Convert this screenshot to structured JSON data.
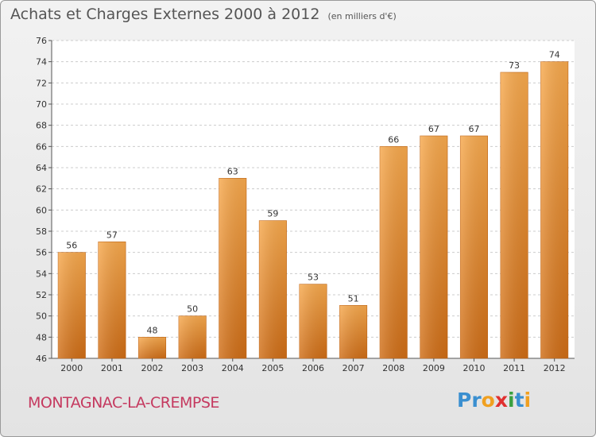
{
  "title": "Achats et Charges Externes 2000 à 2012",
  "subtitle": "(en milliers d'€)",
  "commune": "MONTAGNAC-LA-CREMPSE",
  "logo": {
    "text": "Proxiti",
    "letters": [
      {
        "ch": "P",
        "color": "#3a8fd0"
      },
      {
        "ch": "r",
        "color": "#3a8fd0"
      },
      {
        "ch": "o",
        "color": "#f0a020"
      },
      {
        "ch": "x",
        "color": "#e03030"
      },
      {
        "ch": "i",
        "color": "#3aa040"
      },
      {
        "ch": "t",
        "color": "#3a8fd0"
      },
      {
        "ch": "i",
        "color": "#f0a020"
      }
    ]
  },
  "colors": {
    "bar_light": "#f7a94d",
    "bar_dark": "#cf6d16",
    "grid": "#cccccc",
    "commune": "#c5395f"
  },
  "chart_data": {
    "type": "bar",
    "title": "Achats et Charges Externes 2000 à 2012",
    "subtitle": "(en milliers d'€)",
    "categories": [
      "2000",
      "2001",
      "2002",
      "2003",
      "2004",
      "2005",
      "2006",
      "2007",
      "2008",
      "2009",
      "2010",
      "2011",
      "2012"
    ],
    "values": [
      56,
      57,
      48,
      50,
      63,
      59,
      53,
      51,
      66,
      67,
      67,
      73,
      74
    ],
    "ylim": [
      46,
      76
    ],
    "yticks": [
      46,
      48,
      50,
      52,
      54,
      56,
      58,
      60,
      62,
      64,
      66,
      68,
      70,
      72,
      74,
      76
    ],
    "grid": true,
    "xlabel": "",
    "ylabel": ""
  }
}
